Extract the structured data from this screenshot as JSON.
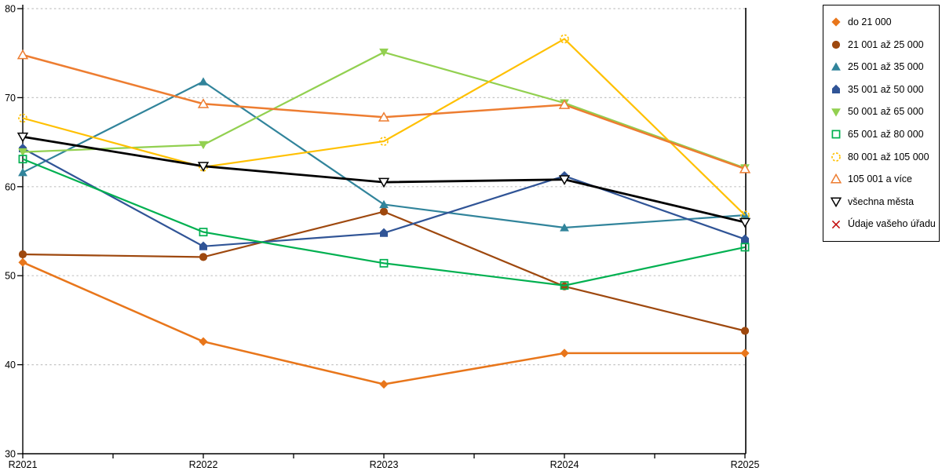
{
  "page": {
    "background": "#ffffff"
  },
  "chart_data": {
    "type": "line",
    "title": "",
    "xlabel": "",
    "ylabel": "",
    "categories": [
      "R2021",
      "R2022",
      "R2023",
      "R2024",
      "R2025"
    ],
    "yticks": [
      80,
      70,
      60,
      50,
      40,
      30
    ],
    "ylim": [
      30,
      80
    ],
    "grid": "horizontal-dashed",
    "legend_position": "right",
    "series": [
      {
        "name": "do 21 000",
        "color": "#E8761B",
        "marker": "diamond",
        "marker_style": "solid",
        "values": [
          51.5,
          42.6,
          37.8,
          41.3,
          41.3
        ]
      },
      {
        "name": "21 001 až 25 000",
        "color": "#9E480E",
        "marker": "circle",
        "marker_style": "solid",
        "values": [
          52.4,
          52.1,
          57.2,
          48.8,
          43.8
        ]
      },
      {
        "name": "25 001 až 35 000",
        "color": "#31849B",
        "marker": "triangle-up",
        "marker_style": "solid",
        "values": [
          61.6,
          71.8,
          58.0,
          55.4,
          56.8
        ]
      },
      {
        "name": "35 001 až 50 000",
        "color": "#305496",
        "marker": "pentagon",
        "marker_style": "solid",
        "values": [
          64.3,
          53.3,
          54.8,
          61.2,
          54.1
        ]
      },
      {
        "name": "50 001 až 65 000",
        "color": "#92D050",
        "marker": "triangle-down",
        "marker_style": "solid",
        "values": [
          63.9,
          64.7,
          75.1,
          69.4,
          62.1
        ]
      },
      {
        "name": "65 001 až 80 000",
        "color": "#00B050",
        "marker": "square",
        "marker_style": "open",
        "values": [
          63.1,
          54.9,
          51.4,
          48.9,
          53.2
        ]
      },
      {
        "name": "80 001 až 105 000",
        "color": "#FFC000",
        "marker": "circle-dashed",
        "marker_style": "open",
        "values": [
          67.7,
          62.2,
          65.1,
          76.6,
          56.8
        ]
      },
      {
        "name": "105 001 a více",
        "color": "#ED7D31",
        "marker": "triangle-up",
        "marker_style": "open",
        "values": [
          74.8,
          69.3,
          67.8,
          69.2,
          62.0
        ]
      },
      {
        "name": "všechna města",
        "color": "#000000",
        "marker": "triangle-down",
        "marker_style": "open",
        "values": [
          65.6,
          62.3,
          60.5,
          60.8,
          56.0
        ]
      },
      {
        "name": "Údaje vašeho úřadu",
        "color": "#C00000",
        "marker": "x",
        "marker_style": "open",
        "values": []
      }
    ]
  }
}
